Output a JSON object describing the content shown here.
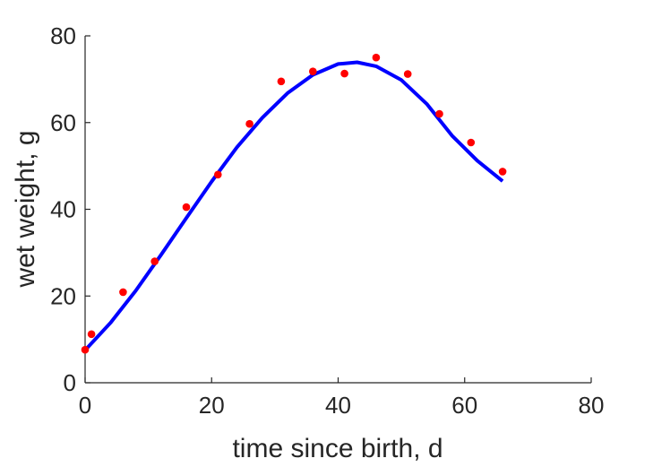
{
  "chart_data": {
    "type": "scatter",
    "title": "",
    "xlabel": "time since birth, d",
    "ylabel": "wet weight, g",
    "xlim": [
      0,
      80
    ],
    "ylim": [
      0,
      80
    ],
    "xticks": [
      0,
      20,
      40,
      60,
      80
    ],
    "yticks": [
      0,
      20,
      40,
      60,
      80
    ],
    "grid": false,
    "series": [
      {
        "kind": "points",
        "color": "#ff0000",
        "x": [
          0,
          1,
          6,
          11,
          16,
          21,
          26,
          31,
          36,
          41,
          46,
          51,
          56,
          61,
          66
        ],
        "y": [
          7.6,
          11.2,
          20.9,
          28.0,
          40.5,
          48.0,
          59.7,
          69.5,
          71.8,
          71.3,
          75.0,
          71.2,
          62.0,
          55.4,
          48.7
        ]
      },
      {
        "kind": "line",
        "color": "#0000ff",
        "x": [
          0,
          4,
          8,
          12,
          16,
          20,
          24,
          28,
          32,
          36,
          40,
          43,
          46,
          50,
          54,
          58,
          62,
          66
        ],
        "y": [
          7.5,
          13.8,
          21.2,
          29.5,
          38.0,
          46.4,
          54.3,
          61.1,
          66.8,
          71.0,
          73.5,
          73.9,
          73.0,
          69.8,
          64.3,
          57.0,
          51.2,
          46.5
        ]
      }
    ]
  }
}
